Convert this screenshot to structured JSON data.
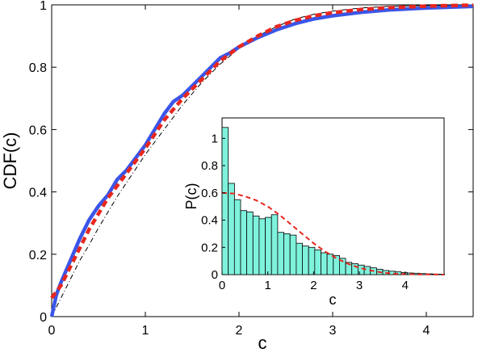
{
  "chart_data": [
    {
      "type": "line",
      "title": "",
      "xlabel": "c",
      "ylabel": "CDF(c)",
      "xlim": [
        0,
        4.5
      ],
      "ylim": [
        0,
        1
      ],
      "x_ticks": [
        0,
        1,
        2,
        3,
        4
      ],
      "y_ticks": [
        0,
        0.2,
        0.4,
        0.6,
        0.8,
        1
      ],
      "x_tick_labels": [
        "0",
        "1",
        "2",
        "3",
        "4"
      ],
      "y_tick_labels": [
        "0",
        "0.2",
        "0.4",
        "0.6",
        "0.8",
        "1"
      ],
      "grid": false,
      "legend": "none",
      "series": [
        {
          "style": "solid-thick",
          "color": "#3a55e8",
          "points": [
            [
              0.0,
              0.0
            ],
            [
              0.05,
              0.07
            ],
            [
              0.1,
              0.11
            ],
            [
              0.2,
              0.18
            ],
            [
              0.3,
              0.25
            ],
            [
              0.4,
              0.31
            ],
            [
              0.5,
              0.355
            ],
            [
              0.6,
              0.39
            ],
            [
              0.7,
              0.44
            ],
            [
              0.8,
              0.47
            ],
            [
              0.9,
              0.51
            ],
            [
              1.0,
              0.55
            ],
            [
              1.1,
              0.6
            ],
            [
              1.2,
              0.65
            ],
            [
              1.3,
              0.69
            ],
            [
              1.4,
              0.71
            ],
            [
              1.5,
              0.74
            ],
            [
              1.6,
              0.77
            ],
            [
              1.7,
              0.8
            ],
            [
              1.8,
              0.83
            ],
            [
              1.9,
              0.845
            ],
            [
              2.0,
              0.865
            ],
            [
              2.2,
              0.895
            ],
            [
              2.4,
              0.92
            ],
            [
              2.6,
              0.94
            ],
            [
              2.8,
              0.955
            ],
            [
              3.0,
              0.965
            ],
            [
              3.3,
              0.976
            ],
            [
              3.6,
              0.984
            ],
            [
              4.0,
              0.99
            ],
            [
              4.5,
              0.995
            ]
          ]
        },
        {
          "style": "dashed-thick",
          "color": "#e8261f",
          "points": [
            [
              0.0,
              0.06
            ],
            [
              0.1,
              0.1
            ],
            [
              0.2,
              0.16
            ],
            [
              0.3,
              0.22
            ],
            [
              0.4,
              0.28
            ],
            [
              0.5,
              0.33
            ],
            [
              0.6,
              0.38
            ],
            [
              0.7,
              0.42
            ],
            [
              0.8,
              0.46
            ],
            [
              0.9,
              0.5
            ],
            [
              1.0,
              0.54
            ],
            [
              1.1,
              0.585
            ],
            [
              1.2,
              0.63
            ],
            [
              1.4,
              0.7
            ],
            [
              1.6,
              0.76
            ],
            [
              1.8,
              0.82
            ],
            [
              2.0,
              0.865
            ],
            [
              2.2,
              0.9
            ],
            [
              2.4,
              0.93
            ],
            [
              2.6,
              0.95
            ],
            [
              2.8,
              0.965
            ],
            [
              3.0,
              0.975
            ],
            [
              3.3,
              0.985
            ],
            [
              3.6,
              0.991
            ],
            [
              4.0,
              0.996
            ],
            [
              4.5,
              0.999
            ]
          ]
        },
        {
          "style": "thin-dashdot",
          "color": "#000000",
          "points": [
            [
              0.0,
              0.0
            ],
            [
              0.1,
              0.06
            ],
            [
              0.2,
              0.12
            ],
            [
              0.3,
              0.18
            ],
            [
              0.4,
              0.23
            ],
            [
              0.5,
              0.285
            ],
            [
              0.6,
              0.335
            ],
            [
              0.7,
              0.385
            ],
            [
              0.8,
              0.43
            ],
            [
              0.9,
              0.475
            ],
            [
              1.0,
              0.52
            ],
            [
              1.2,
              0.6
            ],
            [
              1.4,
              0.68
            ],
            [
              1.6,
              0.75
            ],
            [
              1.8,
              0.81
            ],
            [
              2.0,
              0.86
            ],
            [
              2.2,
              0.9
            ],
            [
              2.4,
              0.93
            ],
            [
              2.6,
              0.955
            ],
            [
              2.8,
              0.97
            ],
            [
              3.0,
              0.98
            ],
            [
              3.3,
              0.99
            ],
            [
              3.6,
              0.995
            ],
            [
              4.0,
              0.998
            ],
            [
              4.5,
              1.0
            ]
          ]
        }
      ]
    },
    {
      "type": "bar",
      "title": "",
      "xlabel": "c",
      "ylabel": "P(c)",
      "xlim": [
        0,
        4.85
      ],
      "ylim": [
        0,
        1.15
      ],
      "x_ticks": [
        0,
        1,
        2,
        3,
        4
      ],
      "y_ticks": [
        0,
        0.2,
        0.4,
        0.6,
        0.8,
        1
      ],
      "x_tick_labels": [
        "0",
        "1",
        "2",
        "3",
        "4"
      ],
      "y_tick_labels": [
        "0",
        "0.2",
        "0.4",
        "0.6",
        "0.8",
        "1"
      ],
      "grid": false,
      "legend": "none",
      "bar_color": "#7ff2dc",
      "bar_edge_color": "#000000",
      "bin_width": 0.135,
      "bin_starts": [
        0.0,
        0.135,
        0.27,
        0.405,
        0.54,
        0.675,
        0.81,
        0.945,
        1.08,
        1.215,
        1.35,
        1.485,
        1.62,
        1.755,
        1.89,
        2.025,
        2.16,
        2.295,
        2.43,
        2.565,
        2.7,
        2.835,
        2.97,
        3.105,
        3.24,
        3.375,
        3.51,
        3.645,
        3.78,
        3.915,
        4.05,
        4.185,
        4.32,
        4.455,
        4.59,
        4.725
      ],
      "values": [
        1.08,
        0.67,
        0.55,
        0.47,
        0.46,
        0.43,
        0.41,
        0.42,
        0.44,
        0.31,
        0.3,
        0.29,
        0.23,
        0.21,
        0.2,
        0.18,
        0.16,
        0.15,
        0.14,
        0.12,
        0.09,
        0.08,
        0.07,
        0.06,
        0.05,
        0.04,
        0.03,
        0.025,
        0.02,
        0.015,
        0.012,
        0.01,
        0.008,
        0.006,
        0.004,
        0.003
      ],
      "curve": {
        "style": "dashed",
        "color": "#e8261f",
        "points": [
          [
            0.0,
            0.6
          ],
          [
            0.25,
            0.595
          ],
          [
            0.5,
            0.575
          ],
          [
            0.75,
            0.545
          ],
          [
            1.0,
            0.5
          ],
          [
            1.25,
            0.44
          ],
          [
            1.5,
            0.37
          ],
          [
            1.75,
            0.3
          ],
          [
            2.0,
            0.23
          ],
          [
            2.25,
            0.17
          ],
          [
            2.5,
            0.12
          ],
          [
            2.75,
            0.08
          ],
          [
            3.0,
            0.05
          ],
          [
            3.25,
            0.03
          ],
          [
            3.5,
            0.015
          ],
          [
            3.75,
            0.008
          ],
          [
            4.0,
            0.004
          ],
          [
            4.25,
            0.002
          ],
          [
            4.5,
            0.001
          ],
          [
            4.85,
            0.0
          ]
        ]
      }
    }
  ]
}
